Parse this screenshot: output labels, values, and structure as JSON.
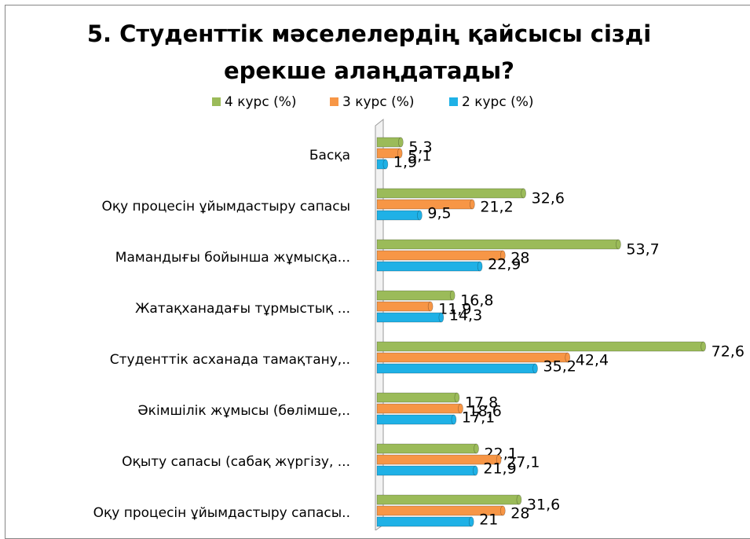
{
  "chart_data": {
    "type": "bar",
    "orientation": "horizontal",
    "title": "5. Студенттік мәселелердің қайсысы сізді ерекше алаңдатады?",
    "categories": [
      "Басқа",
      "Оқу процесін ұйымдастыру сапасы",
      "Мамандығы бойынша жұмысқа...",
      "Жатақханадағы тұрмыстық ...",
      "Студенттік асханада тамақтану,..",
      "Әкімшілік жұмысы (бөлімше,..",
      "Оқыту сапасы (сабақ жүргізу, ...",
      "Оқу процесін ұйымдастыру сапасы.."
    ],
    "series": [
      {
        "name": "4 курс (%)",
        "color": "#9bbb59",
        "values": [
          5.3,
          32.6,
          53.7,
          16.8,
          72.6,
          17.8,
          22.1,
          31.6
        ],
        "value_labels": [
          "5,3",
          "32,6",
          "53,7",
          "16,8",
          "72,6",
          "17,8",
          "22,1",
          "31,6"
        ]
      },
      {
        "name": "3 курс (%)",
        "color": "#f79646",
        "values": [
          5.1,
          21.2,
          28,
          11.9,
          42.4,
          18.6,
          27.1,
          28
        ],
        "value_labels": [
          "5,1",
          "21,2",
          "28",
          "11,9",
          "42,4",
          "18,6",
          "27,1",
          "28"
        ]
      },
      {
        "name": "2 курс (%)",
        "color": "#1fb1e6",
        "values": [
          1.9,
          9.5,
          22.9,
          14.3,
          35.2,
          17.1,
          21.9,
          21
        ],
        "value_labels": [
          "1,9",
          "9,5",
          "22,9",
          "14,3",
          "35,2",
          "17,1",
          "21,9",
          "21"
        ]
      }
    ],
    "xlim": [
      0,
      80
    ],
    "legend": "top"
  }
}
